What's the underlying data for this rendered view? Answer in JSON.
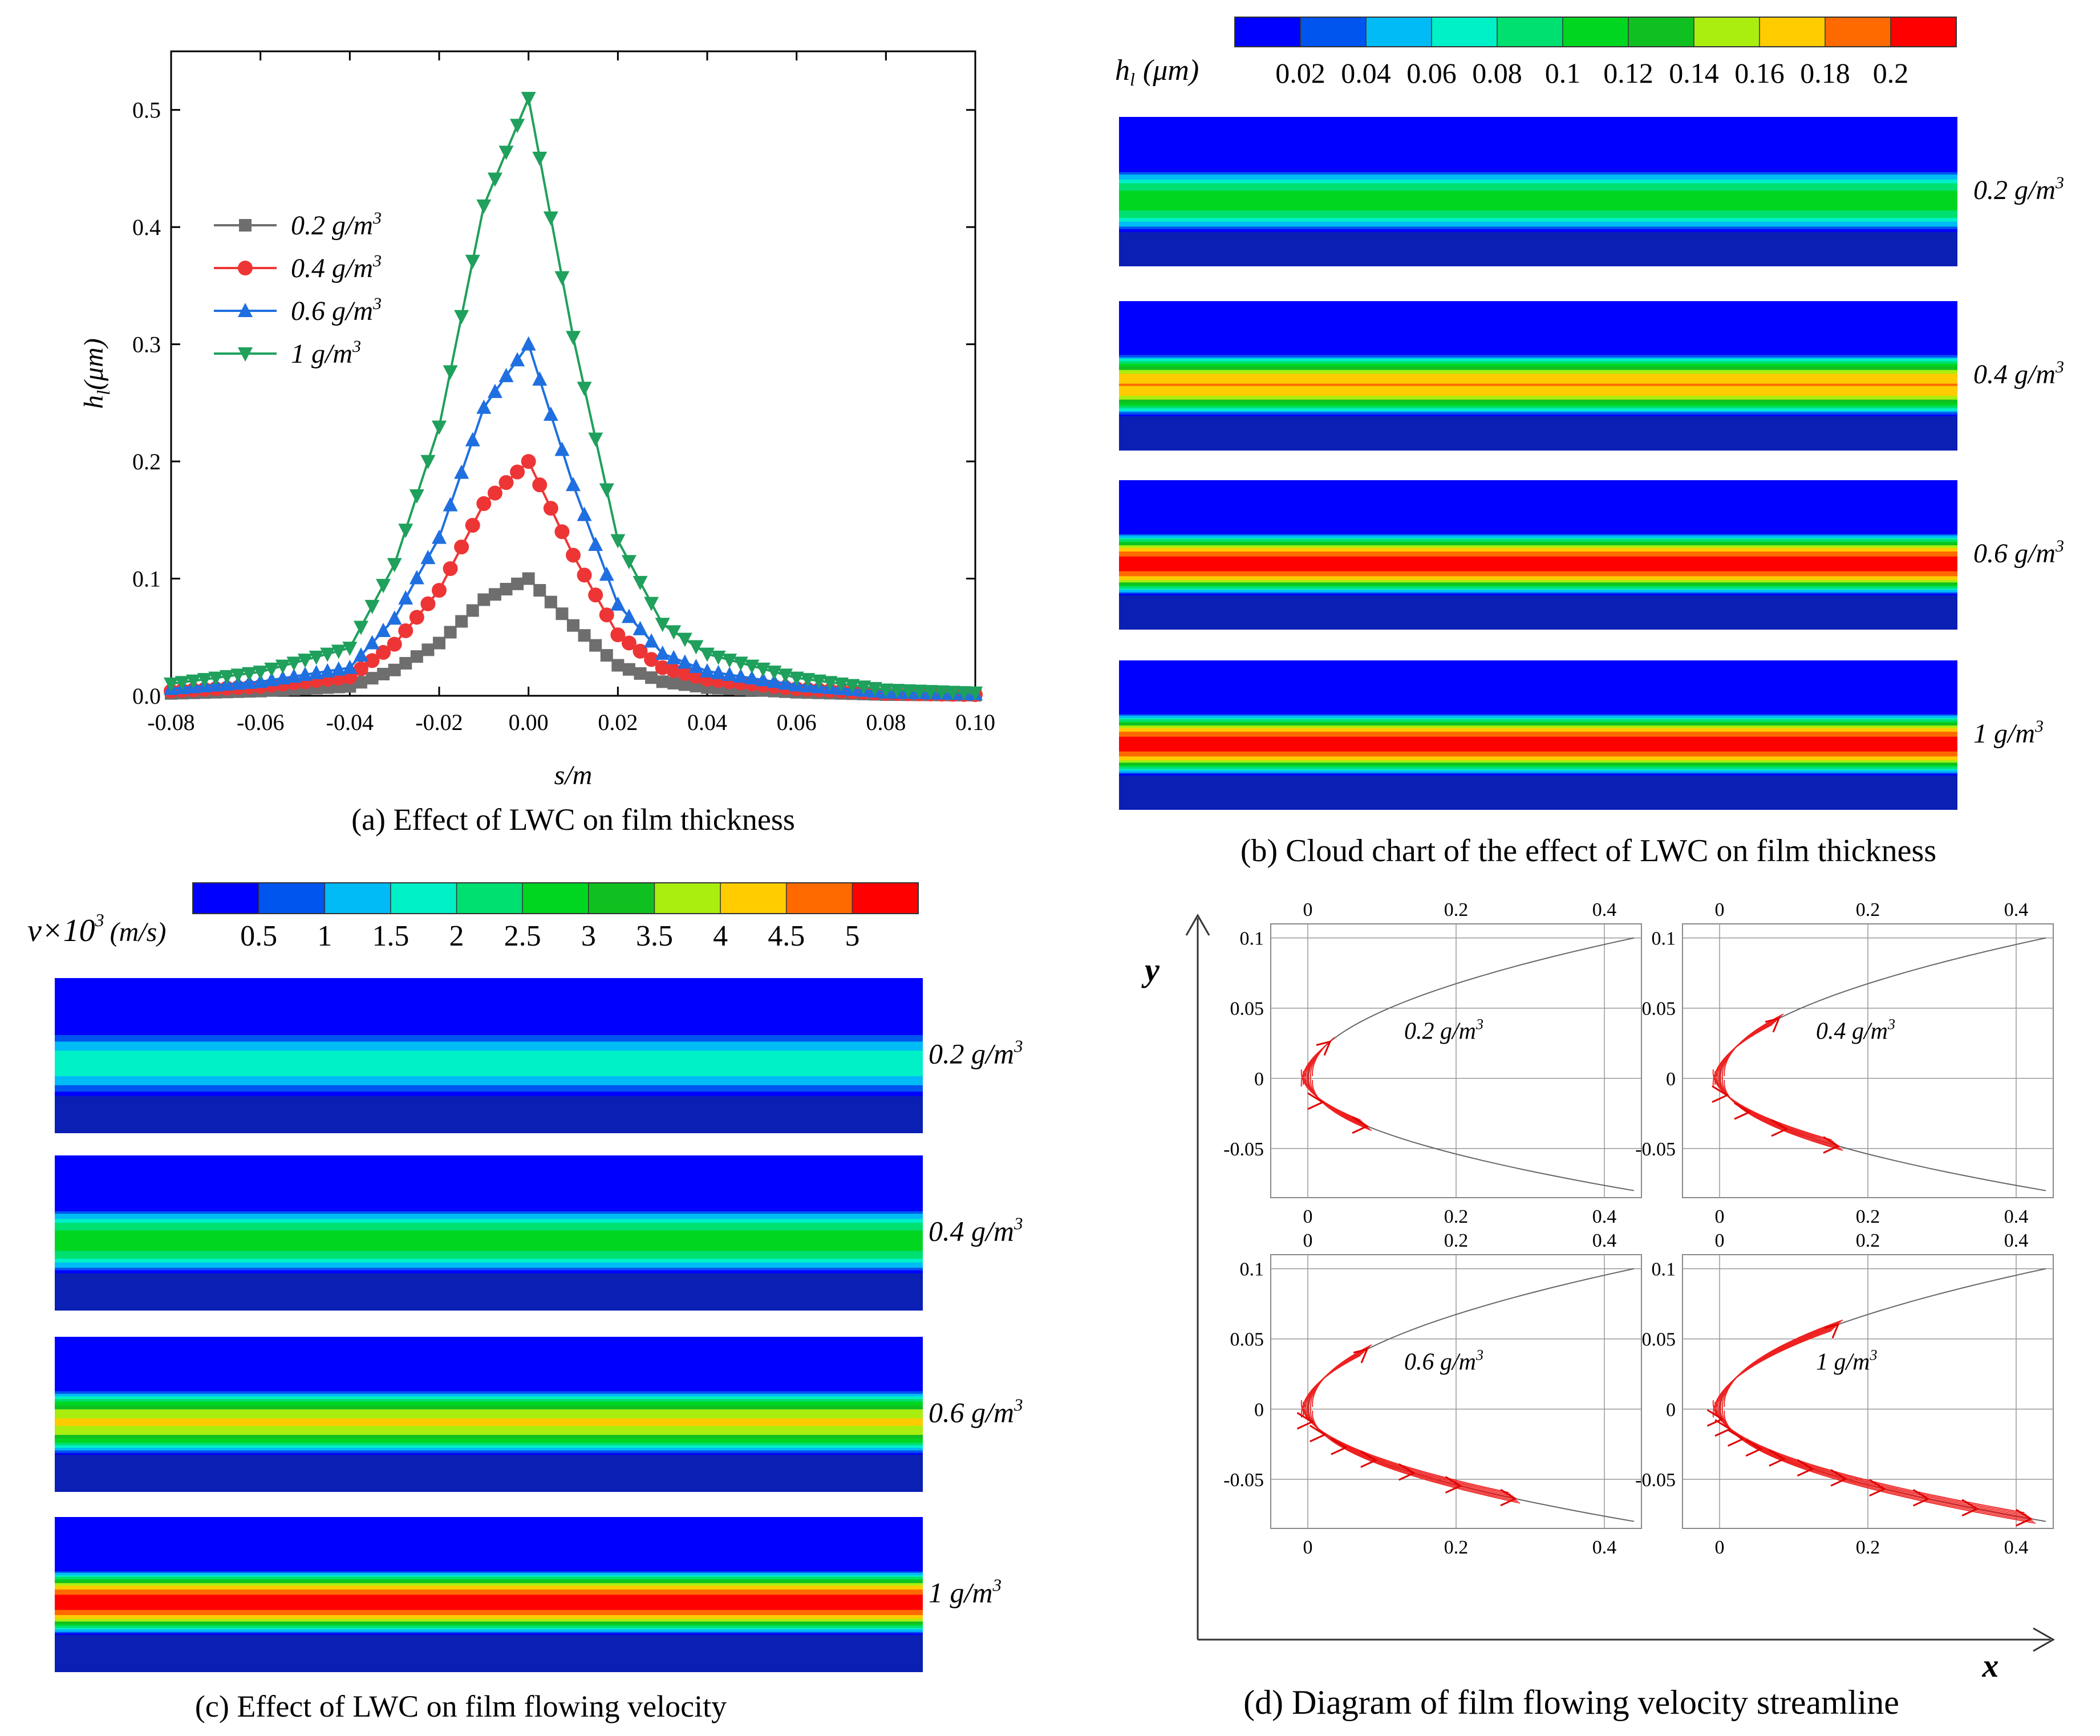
{
  "chart_data": [
    {
      "type": "line",
      "id": "a",
      "caption": "(a) Effect of LWC on film thickness",
      "xlabel": "s/m",
      "ylabel": "h_l(μm)",
      "ylabel_main": "h",
      "ylabel_sub": "l",
      "ylabel_unit": "(μm)",
      "xlim": [
        -0.08,
        0.1
      ],
      "ylim": [
        0.0,
        0.55
      ],
      "xticks": [
        -0.08,
        -0.06,
        -0.04,
        -0.02,
        0.0,
        0.02,
        0.04,
        0.06,
        0.08,
        0.1
      ],
      "xtick_labels": [
        "-0.08",
        "-0.06",
        "-0.04",
        "-0.02",
        "0.00",
        "0.02",
        "0.04",
        "0.06",
        "0.08",
        "0.10"
      ],
      "yticks": [
        0.0,
        0.1,
        0.2,
        0.3,
        0.4,
        0.5
      ],
      "ytick_labels": [
        "0.0",
        "0.1",
        "0.2",
        "0.3",
        "0.4",
        "0.5"
      ],
      "series": [
        {
          "name": "0.2 g/m³",
          "label": "0.2 g/m",
          "sup": "3",
          "peak": 0.1,
          "color": "#6e6e6e",
          "marker": "square"
        },
        {
          "name": "0.4 g/m³",
          "label": "0.4 g/m",
          "sup": "3",
          "peak": 0.2,
          "color": "#ee3535",
          "marker": "circle"
        },
        {
          "name": "0.6 g/m³",
          "label": "0.6 g/m",
          "sup": "3",
          "peak": 0.3,
          "color": "#1f6fe0",
          "marker": "triangle-up"
        },
        {
          "name": "1 g/m³",
          "label": "1 g/m",
          "sup": "3",
          "peak": 0.51,
          "color": "#1fa05c",
          "marker": "triangle-down"
        }
      ],
      "profile_x": [
        -0.08,
        -0.06,
        -0.04,
        -0.03,
        -0.02,
        -0.01,
        0.0,
        0.01,
        0.02,
        0.03,
        0.04,
        0.06,
        0.08,
        0.1
      ],
      "profile_shape": [
        0.02,
        0.04,
        0.08,
        0.22,
        0.45,
        0.82,
        1.0,
        0.6,
        0.26,
        0.12,
        0.07,
        0.03,
        0.01,
        0.005
      ]
    },
    {
      "type": "heatmap",
      "id": "b",
      "caption": "(b) Cloud chart of the effect of LWC on film thickness",
      "colorbar_label_main": "h",
      "colorbar_label_sub": "l",
      "colorbar_label_unit": "(μm)",
      "colorbar_ticks": [
        "0.02",
        "0.04",
        "0.06",
        "0.08",
        "0.1",
        "0.12",
        "0.14",
        "0.16",
        "0.18",
        "0.2"
      ],
      "colorbar_colors": [
        "#0000ff",
        "#0055ee",
        "#00bbf5",
        "#00f0c8",
        "#00e070",
        "#00d620",
        "#10c020",
        "#aaee10",
        "#ffcc00",
        "#ff6a00",
        "#ff0000"
      ],
      "panels": [
        {
          "label": "0.2 g/m",
          "sup": "3",
          "level": 0.1
        },
        {
          "label": "0.4 g/m",
          "sup": "3",
          "level": 0.17
        },
        {
          "label": "0.6 g/m",
          "sup": "3",
          "level": 0.2
        },
        {
          "label": "1 g/m",
          "sup": "3",
          "level": 0.2
        }
      ]
    },
    {
      "type": "heatmap",
      "id": "c",
      "caption": "(c) Effect of LWC on film flowing velocity",
      "colorbar_label_main": "v×10",
      "colorbar_label_sup": "3",
      "colorbar_label_unit": "(m/s)",
      "colorbar_ticks": [
        "0.5",
        "1",
        "1.5",
        "2",
        "2.5",
        "3",
        "3.5",
        "4",
        "4.5",
        "5"
      ],
      "colorbar_colors": [
        "#0000ff",
        "#0055ee",
        "#00bbf5",
        "#00f0c8",
        "#00e070",
        "#00d620",
        "#10c020",
        "#aaee10",
        "#ffcc00",
        "#ff6a00",
        "#ff0000"
      ],
      "panels": [
        {
          "label": "0.2 g/m",
          "sup": "3",
          "level": 1.5
        },
        {
          "label": "0.4 g/m",
          "sup": "3",
          "level": 2.5
        },
        {
          "label": "0.6 g/m",
          "sup": "3",
          "level": 3.8
        },
        {
          "label": "1 g/m",
          "sup": "3",
          "level": 5.0
        }
      ]
    },
    {
      "type": "streamline",
      "id": "d",
      "caption": "(d) Diagram of film flowing velocity streamline",
      "axis_x": "x",
      "axis_y": "y",
      "xticks": [
        "0",
        "0.2",
        "0.4"
      ],
      "xtick_values": [
        0,
        0.2,
        0.4
      ],
      "yticks": [
        "0.1",
        "0.05",
        "0",
        "-0.05"
      ],
      "ytick_values": [
        0.1,
        0.05,
        0,
        -0.05
      ],
      "xlim": [
        -0.05,
        0.45
      ],
      "ylim": [
        -0.085,
        0.11
      ],
      "panels": [
        {
          "label": "0.2 g/m",
          "sup": "3",
          "upper_extent": 0.03,
          "lower_extent": 0.08
        },
        {
          "label": "0.4 g/m",
          "sup": "3",
          "upper_extent": 0.08,
          "lower_extent": 0.16
        },
        {
          "label": "0.6 g/m",
          "sup": "3",
          "upper_extent": 0.08,
          "lower_extent": 0.28
        },
        {
          "label": "1 g/m",
          "sup": "3",
          "upper_extent": 0.16,
          "lower_extent": 0.42
        }
      ]
    }
  ]
}
